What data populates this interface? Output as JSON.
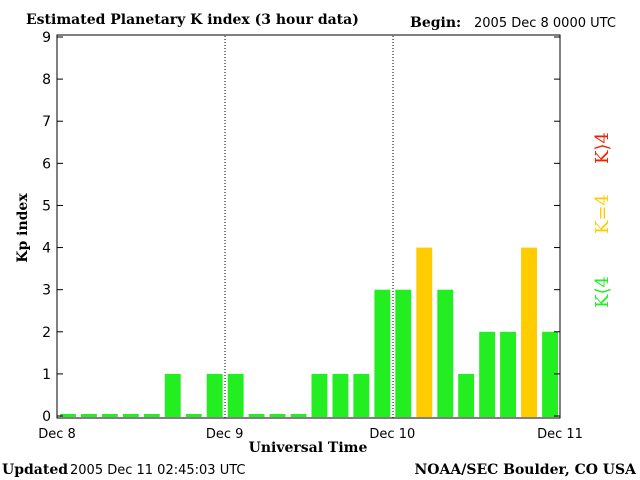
{
  "header": {
    "title": "Estimated Planetary K index (3 hour data)",
    "begin_label": "Begin:",
    "begin_value": "2005 Dec 8 0000 UTC"
  },
  "footer": {
    "updated_label": "Updated",
    "updated_value": "2005 Dec 11 02:45:03 UTC",
    "source": "NOAA/SEC Boulder, CO USA"
  },
  "legend": {
    "low": "K<4",
    "equal": "K=4",
    "high": "K>4"
  },
  "colors": {
    "low": "#22ee22",
    "equal": "#ffcc00",
    "high": "#ee2200",
    "background": "#ffffff",
    "axis": "#000000"
  },
  "chart_data": {
    "type": "bar",
    "title": "Estimated Planetary K index (3 hour data)",
    "xlabel": "Universal Time",
    "ylabel": "Kp index",
    "ylim": [
      0,
      9
    ],
    "yticks": [
      0,
      1,
      2,
      3,
      4,
      5,
      6,
      7,
      8,
      9
    ],
    "xtick_labels": [
      "Dec 8",
      "Dec 9",
      "Dec 10",
      "Dec 11"
    ],
    "day_dividers": [
      "Dec 9",
      "Dec 10"
    ],
    "bars_per_day": 8,
    "interval_hours": 3,
    "values": [
      0,
      0,
      0,
      0,
      0,
      1,
      0,
      1,
      1,
      0,
      0,
      0,
      1,
      1,
      1,
      3,
      3,
      4,
      3,
      1,
      2,
      2,
      4,
      2
    ],
    "grid": false
  }
}
